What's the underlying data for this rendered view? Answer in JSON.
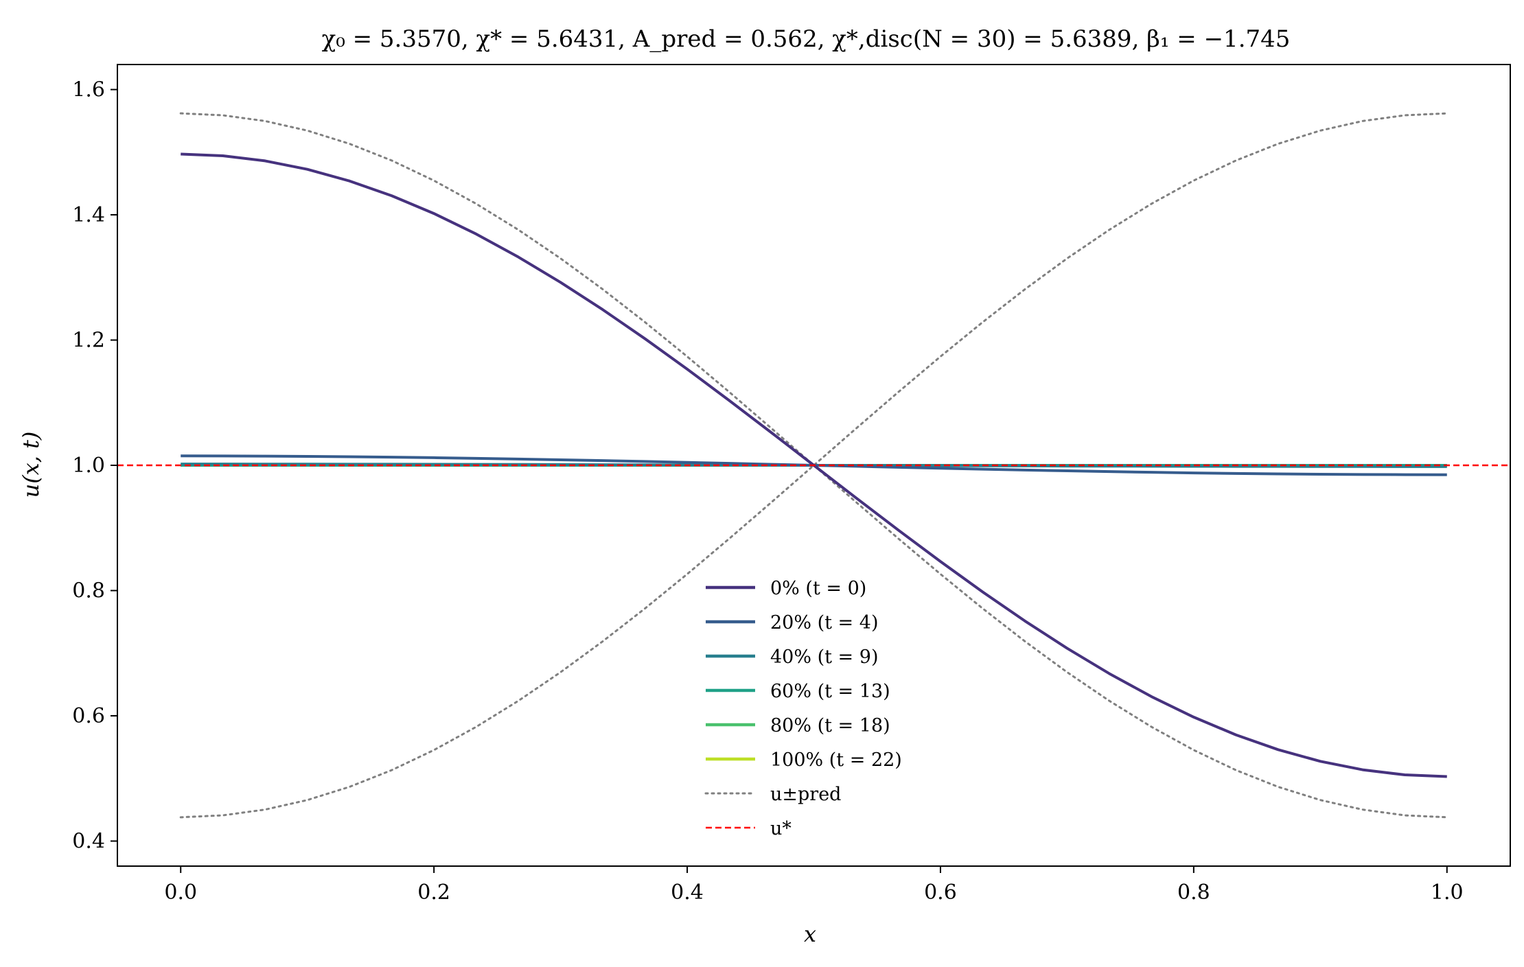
{
  "chart_data": {
    "type": "line",
    "title": "χ₀ = 5.3570,  χ* = 5.6431,  A_pred = 0.562,  χ*,disc(N = 30) = 5.6389,  β₁ = −1.745",
    "xlabel": "x",
    "ylabel": "u(x, t)",
    "xlim": [
      -0.05,
      1.05
    ],
    "ylim": [
      0.36,
      1.64
    ],
    "xticks": [
      0.0,
      0.2,
      0.4,
      0.6,
      0.8,
      1.0
    ],
    "yticks": [
      0.4,
      0.6,
      0.8,
      1.0,
      1.2,
      1.4,
      1.6
    ],
    "xtick_labels": [
      "0.0",
      "0.2",
      "0.4",
      "0.6",
      "0.8",
      "1.0"
    ],
    "ytick_labels": [
      "0.4",
      "0.6",
      "0.8",
      "1.0",
      "1.2",
      "1.4",
      "1.6"
    ],
    "grid": false,
    "legend_position": "lower-center",
    "series": [
      {
        "name": "0% (t = 0)",
        "color": "#46327e",
        "style": "solid",
        "amplitude": 0.497
      },
      {
        "name": "20% (t = 4)",
        "color": "#365c8d",
        "style": "solid",
        "amplitude": 0.015
      },
      {
        "name": "40% (t = 9)",
        "color": "#277f8e",
        "style": "solid",
        "amplitude": 0.002
      },
      {
        "name": "60% (t = 13)",
        "color": "#1fa187",
        "style": "solid",
        "amplitude": 0.0
      },
      {
        "name": "80% (t = 18)",
        "color": "#4ac16d",
        "style": "solid",
        "amplitude": 0.0
      },
      {
        "name": "100% (t = 22)",
        "color": "#bddf26",
        "style": "solid",
        "amplitude": 0.0
      },
      {
        "name": "u±pred",
        "color": "#808080",
        "style": "dotted",
        "amplitude": 0.562
      },
      {
        "name": "u*",
        "color": "#ff0000",
        "style": "dashed",
        "value": 1.0
      }
    ]
  }
}
